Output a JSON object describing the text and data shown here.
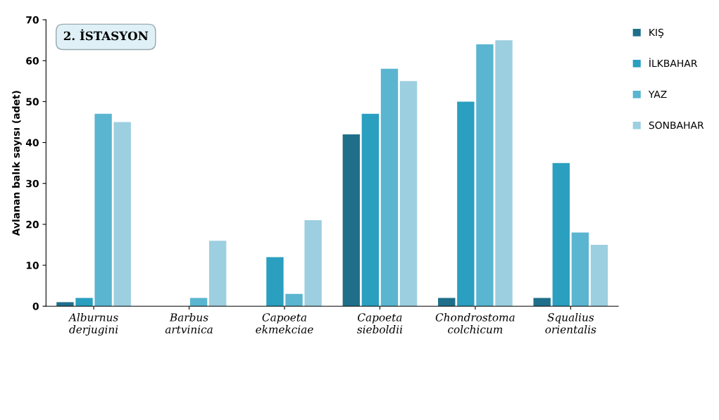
{
  "chart_data": {
    "type": "bar",
    "title": "2. İSTASYON",
    "ylabel": "Avlanan balık sayısı (adet)",
    "categories": [
      "Alburnus\nderjugini",
      "Barbus\nartvinica",
      "Capoeta\nekmekciae",
      "Capoeta\nsieboldii",
      "Chondrostoma\ncolchicum",
      "Squalius\norientalis"
    ],
    "series": [
      {
        "name": "KIŞ",
        "color": "#1f6f8b",
        "values": [
          1,
          0,
          0,
          42,
          2,
          2
        ]
      },
      {
        "name": "İLKBAHAR",
        "color": "#2a9fbf",
        "values": [
          2,
          0,
          12,
          47,
          50,
          35
        ]
      },
      {
        "name": "YAZ",
        "color": "#5ab5d0",
        "values": [
          47,
          2,
          3,
          58,
          64,
          18
        ]
      },
      {
        "name": "SONBAHAR",
        "color": "#9ccfe0",
        "values": [
          45,
          16,
          21,
          55,
          65,
          15
        ]
      }
    ],
    "ylim": [
      0,
      70
    ],
    "yticks": [
      0,
      10,
      20,
      30,
      40,
      50,
      60,
      70
    ],
    "grid": false,
    "legend": "right"
  }
}
